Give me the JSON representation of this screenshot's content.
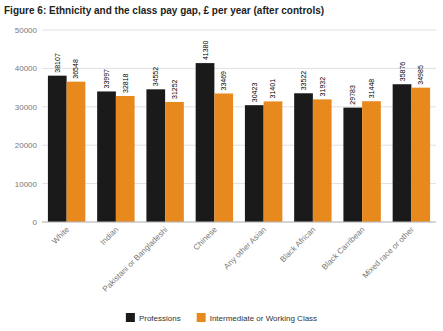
{
  "chart_data": {
    "type": "bar",
    "title": "Figure 6: Ethnicity and the class pay gap, £ per year (after controls)",
    "categories": [
      "White",
      "Indian",
      "Pakistani or Bangladeshi",
      "Chinese",
      "Any other Asian",
      "Black African",
      "Black Carribean",
      "Mixed race or other"
    ],
    "series": [
      {
        "name": "Professions",
        "color": "#1a1a1a",
        "values": [
          38107,
          33997,
          34552,
          41380,
          30423,
          33522,
          29783,
          35876
        ]
      },
      {
        "name": "Intermediate or Working Class",
        "color": "#e8891e",
        "values": [
          36548,
          32818,
          31252,
          33469,
          31401,
          31932,
          31448,
          34985
        ]
      }
    ],
    "ylim": [
      0,
      50000
    ],
    "yticks": [
      0,
      10000,
      20000,
      30000,
      40000,
      50000
    ],
    "grid": true,
    "data_labels": true,
    "legend": "bottom"
  }
}
